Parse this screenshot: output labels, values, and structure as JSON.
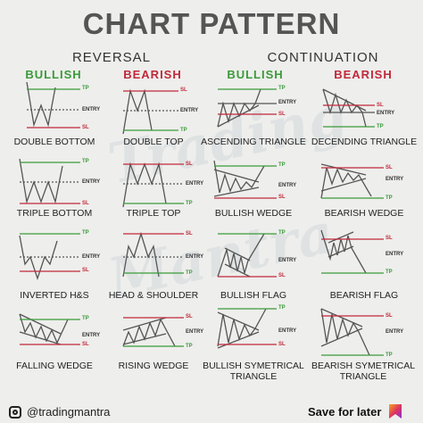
{
  "title": "CHART PATTERN",
  "sections": {
    "reversal": "REVERSAL",
    "continuation": "CONTINUATION"
  },
  "directions": {
    "bullish": "BULLISH",
    "bearish": "BEARISH"
  },
  "watermark": [
    "Trading",
    "Mantra"
  ],
  "labels": {
    "tp": "TP",
    "sl": "SL",
    "entry": "ENTRY"
  },
  "patterns": [
    "DOUBLE BOTTOM",
    "DOUBLE TOP",
    "ASCENDING TRIANGLE",
    "DECENDING TRIANGLE",
    "TRIPLE BOTTOM",
    "TRIPLE TOP",
    "BULLISH WEDGE",
    "BEARISH WEDGE",
    "INVERTED H&S",
    "HEAD & SHOULDER",
    "BULLISH FLAG",
    "BEARISH FLAG",
    "FALLING WEDGE",
    "RISING WEDGE",
    "BULLISH SYMETRICAL TRIANGLE",
    "BEARISH SYMETRICAL TRIANGLE"
  ],
  "footer": {
    "handle": "@tradingmantra",
    "save": "Save for later"
  },
  "colors": {
    "bullish": "#3a9a3a",
    "bearish": "#c0283a",
    "tp": "#3a9a3a",
    "sl": "#c0283a",
    "line": "#555555"
  },
  "icons": {
    "instagram": "instagram-icon",
    "bookmark": "bookmark-icon"
  }
}
